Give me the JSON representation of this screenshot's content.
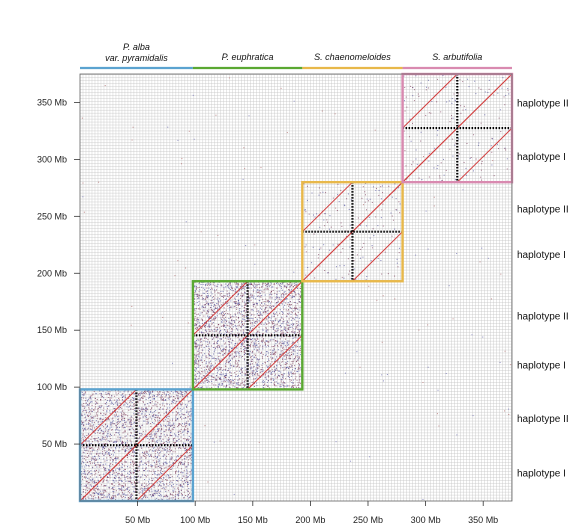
{
  "chart_data": {
    "type": "scatter",
    "subtype": "dot-plot",
    "title": "",
    "xlabel": "",
    "ylabel": "",
    "xlim": [
      0,
      375
    ],
    "ylim": [
      0,
      375
    ],
    "x_ticks": [
      {
        "value": 50,
        "label": "50 Mb"
      },
      {
        "value": 100,
        "label": "100 Mb"
      },
      {
        "value": 150,
        "label": "150 Mb"
      },
      {
        "value": 200,
        "label": "200 Mb"
      },
      {
        "value": 250,
        "label": "250 Mb"
      },
      {
        "value": 300,
        "label": "300 Mb"
      },
      {
        "value": 350,
        "label": "350 Mb"
      }
    ],
    "y_ticks": [
      {
        "value": 50,
        "label": "50 Mb"
      },
      {
        "value": 100,
        "label": "100 Mb"
      },
      {
        "value": 150,
        "label": "150 Mb"
      },
      {
        "value": 200,
        "label": "200 Mb"
      },
      {
        "value": 250,
        "label": "250 Mb"
      },
      {
        "value": 300,
        "label": "300 Mb"
      },
      {
        "value": 350,
        "label": "350 Mb"
      }
    ],
    "species": [
      {
        "name": "P. alba",
        "name2": "var. pyramidalis",
        "start": 0,
        "end": 98,
        "color": "#5ba3d0",
        "noise": "high"
      },
      {
        "name": "P. euphratica",
        "name2": "",
        "start": 98,
        "end": 193,
        "color": "#5aa832",
        "noise": "high"
      },
      {
        "name": "S. chaenomeloides",
        "name2": "",
        "start": 193,
        "end": 280,
        "color": "#e8b84a",
        "noise": "low"
      },
      {
        "name": "S. arbutifolia",
        "name2": "",
        "start": 280,
        "end": 375,
        "color": "#d98ab0",
        "noise": "low"
      }
    ],
    "haplotype_labels": [
      {
        "label": "haplotype I",
        "y": 25
      },
      {
        "label": "haplotype II",
        "y": 73
      },
      {
        "label": "haplotype I",
        "y": 120
      },
      {
        "label": "haplotype II",
        "y": 163
      },
      {
        "label": "haplotype I",
        "y": 217
      },
      {
        "label": "haplotype II",
        "y": 257
      },
      {
        "label": "haplotype I",
        "y": 303
      },
      {
        "label": "haplotype II",
        "y": 350
      }
    ],
    "grid": true,
    "diagonal_color": "#d23a3a"
  }
}
